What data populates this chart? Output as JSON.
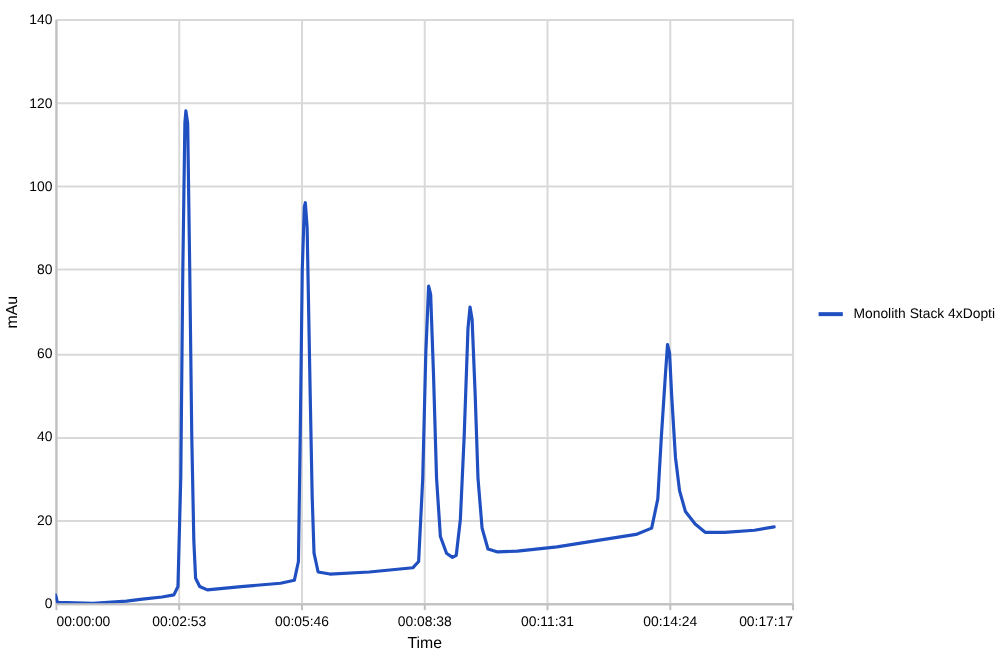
{
  "chart_data": {
    "type": "line",
    "xlabel": "Time",
    "ylabel": "mAu",
    "xlim": [
      0,
      0.288
    ],
    "xticks": [
      {
        "value": 0,
        "label": "00:00:00"
      },
      {
        "value": 0.048,
        "label": "00:02:53"
      },
      {
        "value": 0.096,
        "label": "00:05:46"
      },
      {
        "value": 0.144,
        "label": "00:08:38"
      },
      {
        "value": 0.192,
        "label": "00:11:31"
      },
      {
        "value": 0.24,
        "label": "00:14:24"
      },
      {
        "value": 0.288,
        "label": "00:17:17"
      }
    ],
    "ylim": [
      0,
      140
    ],
    "yticks": [
      0,
      20,
      40,
      60,
      80,
      100,
      120,
      140
    ],
    "grid": true,
    "legend": "right",
    "marker": "none",
    "line_style": "solid",
    "series": [
      {
        "name": "Monolith Stack 4xDopti",
        "color": "#1f4fc0",
        "x": [
          0.0,
          0.0008,
          0.0147,
          0.0278,
          0.034,
          0.0417,
          0.0463,
          0.0479,
          0.049,
          0.0498,
          0.0506,
          0.051,
          0.0517,
          0.0525,
          0.0533,
          0.0541,
          0.0548,
          0.0564,
          0.0594,
          0.0726,
          0.088,
          0.0934,
          0.095,
          0.0957,
          0.0965,
          0.0973,
          0.0977,
          0.0984,
          0.0996,
          0.1004,
          0.1011,
          0.1027,
          0.1073,
          0.1227,
          0.1397,
          0.142,
          0.1436,
          0.1448,
          0.1459,
          0.1467,
          0.1478,
          0.149,
          0.1505,
          0.1529,
          0.1552,
          0.1567,
          0.1583,
          0.1598,
          0.1613,
          0.1621,
          0.1629,
          0.1641,
          0.1652,
          0.1668,
          0.1691,
          0.1729,
          0.1806,
          0.1961,
          0.2115,
          0.227,
          0.2331,
          0.2355,
          0.2369,
          0.2385,
          0.2393,
          0.2401,
          0.2409,
          0.2424,
          0.244,
          0.2463,
          0.2501,
          0.254,
          0.2617,
          0.2733,
          0.281
        ],
        "values": [
          2,
          0.2,
          0,
          0.5,
          1,
          1.5,
          2,
          4,
          30,
          80,
          115,
          118,
          115,
          80,
          40,
          15,
          6,
          4,
          3.2,
          4,
          4.8,
          5.5,
          10,
          40,
          80,
          95,
          96,
          90,
          50,
          25,
          12,
          7.5,
          7,
          7.5,
          8.5,
          10,
          30,
          60,
          76,
          74,
          55,
          30,
          16,
          12,
          11,
          11.5,
          20,
          40,
          66,
          71,
          68,
          50,
          30,
          18,
          13,
          12.3,
          12.5,
          13.5,
          15,
          16.5,
          18,
          25,
          40,
          55,
          62,
          60,
          50,
          35,
          27,
          22,
          19,
          17,
          17,
          17.5,
          18.3
        ]
      }
    ]
  }
}
